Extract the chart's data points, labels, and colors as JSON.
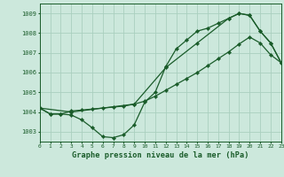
{
  "title": "Graphe pression niveau de la mer (hPa)",
  "bg_color": "#cce8dc",
  "grid_color": "#aacfbf",
  "line_color": "#1a5c2a",
  "xlim": [
    0,
    23
  ],
  "ylim": [
    1002.5,
    1009.5
  ],
  "yticks": [
    1003,
    1004,
    1005,
    1006,
    1007,
    1008,
    1009
  ],
  "xticks": [
    0,
    1,
    2,
    3,
    4,
    5,
    6,
    7,
    8,
    9,
    10,
    11,
    12,
    13,
    14,
    15,
    16,
    17,
    18,
    19,
    20,
    21,
    22,
    23
  ],
  "series1_x": [
    0,
    1,
    2,
    3,
    4,
    5,
    6,
    7,
    8,
    9,
    10,
    11,
    12,
    13,
    14,
    15,
    16,
    17,
    18,
    19,
    20,
    21,
    22,
    23
  ],
  "series1_y": [
    1004.2,
    1003.9,
    1003.9,
    1003.85,
    1003.6,
    1003.2,
    1002.75,
    1002.7,
    1002.85,
    1003.35,
    1004.5,
    1005.0,
    1006.3,
    1007.2,
    1007.65,
    1008.1,
    1008.25,
    1008.5,
    1008.75,
    1009.0,
    1008.9,
    1008.1,
    1007.5,
    1006.5
  ],
  "series2_x": [
    0,
    1,
    2,
    3,
    4,
    5,
    6,
    7,
    8,
    9,
    10,
    11,
    12,
    13,
    14,
    15,
    16,
    17,
    18,
    19,
    20,
    21,
    22,
    23
  ],
  "series2_y": [
    1004.2,
    1003.9,
    1003.9,
    1004.05,
    1004.1,
    1004.15,
    1004.2,
    1004.25,
    1004.3,
    1004.4,
    1004.55,
    1004.8,
    1005.1,
    1005.4,
    1005.7,
    1006.0,
    1006.35,
    1006.7,
    1007.05,
    1007.45,
    1007.8,
    1007.5,
    1006.9,
    1006.5
  ],
  "series3_x": [
    0,
    3,
    9,
    12,
    15,
    18,
    19,
    20,
    21,
    22,
    23
  ],
  "series3_y": [
    1004.2,
    1004.0,
    1004.4,
    1006.25,
    1007.5,
    1008.75,
    1009.0,
    1008.9,
    1008.1,
    1007.5,
    1006.5
  ]
}
